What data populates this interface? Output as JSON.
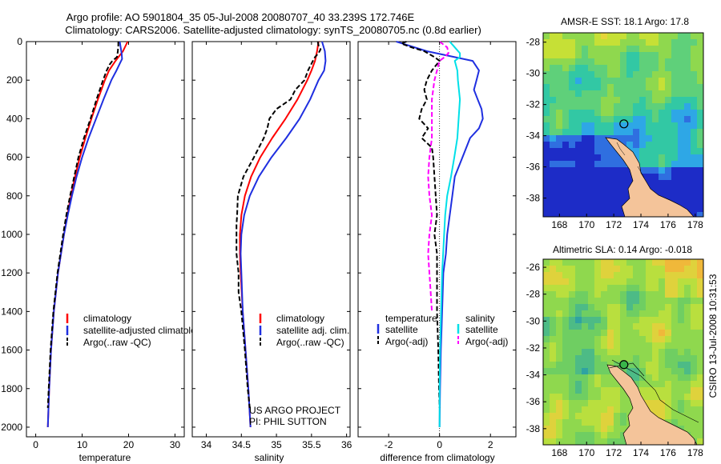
{
  "header": {
    "line1": "Argo profile: AO 5901804_35 05-Jul-2008 20080707_40 33.239S 172.746E",
    "line2": "Climatology: CARS2006. Satellite-adjusted climatology: synTS_20080705.nc (0.8d earlier)"
  },
  "footer": {
    "project": "US ARGO PROJECT",
    "pi": "PI: PHIL SUTTON",
    "stamp": "CSIRO 13-Jul-2008 10:31:53"
  },
  "colors": {
    "climatology": "#ff0000",
    "satellite": "#1f2fe0",
    "argo": "#000000",
    "satellite_salinity_diff": "#00e0e8",
    "argo_salinity_diff": "#ff00ff",
    "land": "#f4c49a"
  },
  "chart_data": [
    {
      "type": "line",
      "id": "temperature",
      "xlabel": "temperature",
      "xlim": [
        -2,
        32
      ],
      "ylim": [
        2050,
        0
      ],
      "xticks": [
        0,
        10,
        20,
        30
      ],
      "yticks": [
        0,
        200,
        400,
        600,
        800,
        1000,
        1200,
        1400,
        1600,
        1800,
        2000
      ],
      "legend": [
        "climatology",
        "satellite-adjusted climatology",
        "Argo(..raw -QC)"
      ],
      "series": [
        {
          "name": "climatology",
          "color_key": "climatology",
          "dash": false,
          "depth": [
            0,
            50,
            100,
            150,
            200,
            300,
            400,
            500,
            600,
            700,
            800,
            900,
            1000,
            1200,
            1400,
            1600,
            1800,
            2000
          ],
          "values": [
            19.8,
            18.8,
            17.2,
            15.8,
            14.9,
            13.4,
            12.0,
            10.7,
            9.5,
            8.5,
            7.6,
            6.8,
            6.1,
            4.8,
            3.9,
            3.3,
            2.9,
            2.6
          ]
        },
        {
          "name": "satellite-adjusted climatology",
          "color_key": "satellite",
          "dash": false,
          "depth": [
            0,
            30,
            60,
            90,
            110,
            150,
            200,
            300,
            400,
            500,
            600,
            700,
            800,
            900,
            1000,
            1200,
            1400,
            1600,
            1800,
            2000
          ],
          "values": [
            18.1,
            18.3,
            18.5,
            18.6,
            18.2,
            17.4,
            16.3,
            14.6,
            13.0,
            11.4,
            10.0,
            8.8,
            7.8,
            6.9,
            6.1,
            4.8,
            3.9,
            3.3,
            2.9,
            2.6
          ]
        },
        {
          "name": "Argo(..raw -QC)",
          "color_key": "argo",
          "dash": true,
          "depth": [
            0,
            20,
            50,
            80,
            100,
            120,
            150,
            200,
            300,
            400,
            500,
            600,
            700,
            800,
            900,
            1000,
            1100,
            1200,
            1400,
            1600,
            1800,
            1900
          ],
          "values": [
            17.8,
            17.8,
            17.7,
            17.5,
            16.5,
            15.9,
            15.3,
            14.5,
            13.1,
            11.8,
            10.4,
            9.2,
            8.3,
            7.4,
            6.6,
            5.9,
            5.3,
            4.7,
            3.8,
            3.2,
            2.8,
            2.6
          ]
        }
      ]
    },
    {
      "type": "line",
      "id": "salinity",
      "xlabel": "salinity",
      "xlim": [
        33.8,
        36.05
      ],
      "ylim": [
        2050,
        0
      ],
      "xticks": [
        34,
        34.5,
        35,
        35.5,
        36
      ],
      "legend": [
        "climatology",
        "satellite adj. clim.",
        "Argo(..raw -QC)"
      ],
      "series": [
        {
          "name": "climatology",
          "color_key": "climatology",
          "dash": false,
          "depth": [
            0,
            50,
            100,
            150,
            200,
            300,
            400,
            500,
            600,
            700,
            800,
            900,
            1000,
            1100,
            1200,
            1400,
            1600,
            1800,
            2000
          ],
          "values": [
            35.6,
            35.58,
            35.55,
            35.5,
            35.44,
            35.3,
            35.13,
            34.94,
            34.77,
            34.64,
            34.55,
            34.5,
            34.48,
            34.48,
            34.49,
            34.52,
            34.56,
            34.6,
            34.63
          ]
        },
        {
          "name": "satellite adj. clim.",
          "color_key": "satellite",
          "dash": false,
          "depth": [
            0,
            50,
            100,
            150,
            200,
            300,
            400,
            500,
            600,
            700,
            800,
            900,
            1000,
            1100,
            1200,
            1400,
            1600,
            1800,
            2000
          ],
          "values": [
            35.65,
            35.69,
            35.7,
            35.68,
            35.6,
            35.48,
            35.33,
            35.14,
            34.93,
            34.75,
            34.62,
            34.54,
            34.5,
            34.49,
            34.5,
            34.52,
            34.56,
            34.6,
            34.63
          ]
        },
        {
          "name": "Argo(..raw -QC)",
          "color_key": "argo",
          "dash": true,
          "depth": [
            0,
            20,
            40,
            60,
            80,
            100,
            150,
            200,
            250,
            300,
            350,
            400,
            450,
            500,
            600,
            700,
            800,
            900,
            950,
            1000,
            1100,
            1200,
            1300,
            1400,
            1600,
            1800,
            1900
          ],
          "values": [
            35.59,
            35.6,
            35.63,
            35.6,
            35.55,
            35.52,
            35.45,
            35.4,
            35.27,
            35.2,
            35.0,
            34.9,
            34.87,
            34.82,
            34.68,
            34.53,
            34.45,
            34.44,
            34.43,
            34.43,
            34.43,
            34.46,
            34.46,
            34.5,
            34.55,
            34.59,
            34.62
          ]
        }
      ]
    },
    {
      "type": "line",
      "id": "difference",
      "xlabel": "difference from climatology",
      "xlim": [
        -3.2,
        3.0
      ],
      "ylim": [
        2050,
        0
      ],
      "xticks": [
        -2,
        0,
        2
      ],
      "zero_line": true,
      "legend_groups": [
        {
          "title": "temperature",
          "entries": [
            "satellite",
            "Argo(-adj)"
          ]
        },
        {
          "title": "salinity",
          "entries": [
            "satellite",
            "Argo(-adj)"
          ]
        }
      ],
      "series": [
        {
          "name": "temperature satellite",
          "color_key": "satellite",
          "dash": false,
          "depth": [
            0,
            50,
            100,
            150,
            200,
            250,
            300,
            350,
            400,
            450,
            500,
            600,
            700,
            800,
            900,
            1000,
            1100,
            1200,
            1400,
            1600,
            1800,
            2000
          ],
          "values": [
            -1.7,
            -0.5,
            1.3,
            1.55,
            1.45,
            1.35,
            1.5,
            1.65,
            1.7,
            1.55,
            1.2,
            0.9,
            0.6,
            0.5,
            0.4,
            0.3,
            0.25,
            0.15,
            0.1,
            0.05,
            0.02,
            0.0
          ]
        },
        {
          "name": "temperature Argo(-adj)",
          "color_key": "argo",
          "dash": true,
          "depth": [
            0,
            10,
            30,
            50,
            80,
            100,
            150,
            200,
            250,
            300,
            350,
            400,
            450,
            500,
            550,
            600,
            700,
            800,
            900,
            1000,
            1100,
            1200,
            1400,
            1600,
            1800,
            1900
          ],
          "values": [
            -1.3,
            -1.5,
            -1.1,
            -0.6,
            -0.2,
            0.0,
            -0.3,
            -0.5,
            -0.6,
            -0.5,
            -0.7,
            -0.8,
            -0.45,
            -0.7,
            -0.3,
            -0.25,
            -0.2,
            -0.15,
            -0.1,
            -0.2,
            -0.1,
            -0.1,
            -0.1,
            -0.05,
            -0.02,
            0.0
          ]
        },
        {
          "name": "salinity satellite",
          "color_key": "satellite_salinity_diff",
          "dash": false,
          "depth": [
            0,
            30,
            60,
            80,
            100,
            150,
            200,
            300,
            400,
            500,
            600,
            700,
            800,
            900,
            1000,
            1200,
            1400,
            1600,
            1800,
            2000
          ],
          "values": [
            0.4,
            0.6,
            0.8,
            0.8,
            0.6,
            0.7,
            0.72,
            0.8,
            0.75,
            0.7,
            0.58,
            0.45,
            0.3,
            0.22,
            0.18,
            0.1,
            0.06,
            0.02,
            0.0,
            0.0
          ]
        },
        {
          "name": "salinity Argo(-adj)",
          "color_key": "argo_salinity_diff",
          "dash": true,
          "depth": [
            0,
            30,
            60,
            80,
            100,
            150,
            200,
            300,
            400,
            500,
            600,
            700,
            800,
            900,
            1000,
            1100,
            1200,
            1300,
            1400
          ],
          "values": [
            0.0,
            0.3,
            0.35,
            0.2,
            0.0,
            -0.1,
            -0.2,
            -0.3,
            -0.3,
            -0.3,
            -0.4,
            -0.45,
            -0.4,
            -0.3,
            -0.4,
            -0.45,
            -0.4,
            -0.35,
            -0.3
          ]
        }
      ]
    },
    {
      "type": "heatmap",
      "id": "sst_map",
      "title": "AMSR-E SST: 18.1 Argo: 17.8",
      "xlim": [
        166.8,
        178.6
      ],
      "ylim": [
        -39.2,
        -27.4
      ],
      "xticks": [
        168,
        170,
        172,
        174,
        176,
        178
      ],
      "yticks": [
        -28,
        -30,
        -32,
        -34,
        -36,
        -38
      ],
      "marker": {
        "lon": 172.746,
        "lat": -33.239,
        "style": "open"
      },
      "palette": [
        "#1d2cc7",
        "#2f6fe0",
        "#2ea7e6",
        "#32c8a4",
        "#5fd07a",
        "#8fd84e",
        "#c6e036",
        "#e6d53a"
      ]
    },
    {
      "type": "heatmap",
      "id": "sla_map",
      "title": "Altimetric SLA: 0.14 Argo: -0.018",
      "xlim": [
        166.8,
        178.6
      ],
      "ylim": [
        -39.2,
        -25.4
      ],
      "xticks": [
        168,
        170,
        172,
        174,
        176,
        178
      ],
      "yticks": [
        -26,
        -28,
        -30,
        -32,
        -34,
        -36,
        -38
      ],
      "marker": {
        "lon": 172.746,
        "lat": -33.239,
        "style": "filled"
      },
      "palette": [
        "#2fa3a2",
        "#4dbb86",
        "#6fce62",
        "#8fd84e",
        "#b9df3e",
        "#dfd23c",
        "#f0b83a"
      ]
    }
  ]
}
